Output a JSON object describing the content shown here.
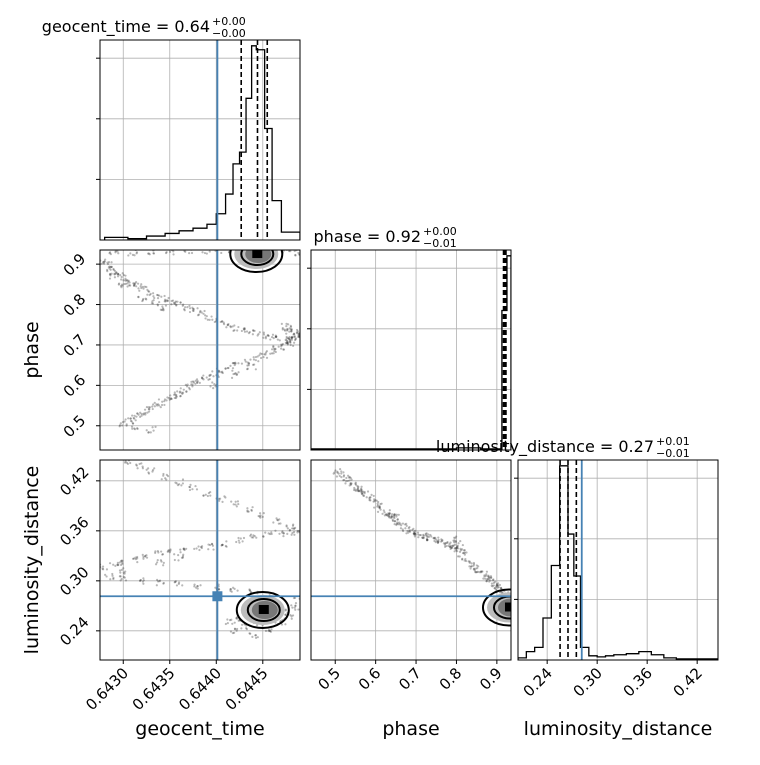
{
  "chart_data": {
    "type": "corner",
    "parameters": [
      {
        "key": "geocent_time",
        "label": "geocent_time",
        "range": [
          0.64275,
          0.6449
        ],
        "ticks": [
          0.643,
          0.6435,
          0.644,
          0.6445
        ],
        "tick_labels": [
          "0.6430",
          "0.6435",
          "0.6440",
          "0.6445"
        ],
        "title_value": "0.64",
        "title_plus": "+0.00",
        "title_minus": "−0.00",
        "title": "geocent_time = 0.64",
        "quantiles": [
          0.644268,
          0.644443,
          0.644548
        ],
        "truth": 0.644012
      },
      {
        "key": "phase",
        "label": "phase",
        "range": [
          0.44,
          0.935
        ],
        "ticks": [
          0.5,
          0.6,
          0.7,
          0.8,
          0.9
        ],
        "tick_labels": [
          "0.5",
          "0.6",
          "0.7",
          "0.8",
          "0.9"
        ],
        "title_value": "0.92",
        "title_plus": "+0.00",
        "title_minus": "−0.01",
        "title": "phase = 0.92",
        "quantiles": [
          0.9165,
          0.9195,
          0.9225
        ],
        "truth": null
      },
      {
        "key": "luminosity_distance",
        "label": "luminosity_distance",
        "range": [
          0.205,
          0.445
        ],
        "ticks": [
          0.24,
          0.3,
          0.36,
          0.42
        ],
        "tick_labels": [
          "0.24",
          "0.30",
          "0.36",
          "0.42"
        ],
        "title_value": "0.27",
        "title_plus": "+0.01",
        "title_minus": "−0.01",
        "title": "luminosity_distance = 0.27",
        "quantiles": [
          0.2555,
          0.265,
          0.275
        ],
        "truth": 0.2815
      }
    ],
    "histograms": {
      "geocent_time": {
        "edges": [
          0.6428,
          0.64305,
          0.64325,
          0.64345,
          0.6436,
          0.64375,
          0.6439,
          0.644,
          0.6441,
          0.64418,
          0.64425,
          0.64432,
          0.64438,
          0.64443,
          0.64452,
          0.6446,
          0.6447,
          0.6449
        ],
        "counts": [
          2,
          1,
          3,
          5,
          7,
          9,
          12,
          20,
          35,
          58,
          67,
          108,
          148,
          145,
          85,
          30,
          6
        ]
      },
      "phase": {
        "edges": [
          0.44,
          0.5,
          0.56,
          0.62,
          0.68,
          0.74,
          0.8,
          0.86,
          0.9,
          0.9125,
          0.925,
          0.935
        ],
        "counts": [
          1,
          1,
          1,
          1,
          1,
          1,
          2,
          1,
          1,
          130,
          181
        ]
      },
      "luminosity_distance": {
        "edges": [
          0.205,
          0.215,
          0.225,
          0.235,
          0.245,
          0.255,
          0.265,
          0.272,
          0.28,
          0.29,
          0.3,
          0.31,
          0.32,
          0.335,
          0.35,
          0.365,
          0.38,
          0.395,
          0.445
        ],
        "counts": [
          2,
          8,
          12,
          40,
          90,
          185,
          120,
          80,
          12,
          4,
          3,
          4,
          5,
          6,
          8,
          5,
          2,
          1
        ]
      }
    },
    "scatter": {
      "geocent_time_vs_phase": [
        [
          0.64279,
          0.905
        ],
        [
          0.64283,
          0.9
        ],
        [
          0.64286,
          0.89
        ],
        [
          0.6429,
          0.882
        ],
        [
          0.64295,
          0.875
        ],
        [
          0.643,
          0.866
        ],
        [
          0.64305,
          0.858
        ],
        [
          0.6431,
          0.852
        ],
        [
          0.64316,
          0.845
        ],
        [
          0.64322,
          0.838
        ],
        [
          0.6433,
          0.83
        ],
        [
          0.64337,
          0.822
        ],
        [
          0.64345,
          0.815
        ],
        [
          0.64352,
          0.808
        ],
        [
          0.6436,
          0.8
        ],
        [
          0.64368,
          0.792
        ],
        [
          0.64376,
          0.785
        ],
        [
          0.64384,
          0.777
        ],
        [
          0.64392,
          0.769
        ],
        [
          0.64402,
          0.76
        ],
        [
          0.64412,
          0.75
        ],
        [
          0.6442,
          0.742
        ],
        [
          0.6443,
          0.735
        ],
        [
          0.6444,
          0.729
        ],
        [
          0.6445,
          0.724
        ],
        [
          0.6446,
          0.72
        ],
        [
          0.64468,
          0.718
        ],
        [
          0.64476,
          0.716
        ],
        [
          0.64482,
          0.715
        ],
        [
          0.64486,
          0.717
        ],
        [
          0.64485,
          0.724
        ],
        [
          0.6448,
          0.735
        ],
        [
          0.64474,
          0.745
        ],
        [
          0.64466,
          0.69
        ],
        [
          0.64458,
          0.682
        ],
        [
          0.6445,
          0.674
        ],
        [
          0.64442,
          0.667
        ],
        [
          0.64432,
          0.658
        ],
        [
          0.64422,
          0.65
        ],
        [
          0.64414,
          0.643
        ],
        [
          0.64405,
          0.636
        ],
        [
          0.64398,
          0.628
        ],
        [
          0.6439,
          0.62
        ],
        [
          0.64383,
          0.612
        ],
        [
          0.64377,
          0.604
        ],
        [
          0.6437,
          0.596
        ],
        [
          0.64365,
          0.588
        ],
        [
          0.6436,
          0.58
        ],
        [
          0.64354,
          0.572
        ],
        [
          0.64348,
          0.565
        ],
        [
          0.64342,
          0.558
        ],
        [
          0.64336,
          0.55
        ],
        [
          0.6433,
          0.542
        ],
        [
          0.64324,
          0.535
        ],
        [
          0.64318,
          0.528
        ],
        [
          0.64312,
          0.52
        ],
        [
          0.64306,
          0.512
        ],
        [
          0.643,
          0.505
        ],
        [
          0.64312,
          0.498
        ],
        [
          0.6433,
          0.49
        ],
        [
          0.6429,
          0.925
        ],
        [
          0.6431,
          0.928
        ],
        [
          0.6433,
          0.93
        ],
        [
          0.6435,
          0.931
        ],
        [
          0.6437,
          0.932
        ],
        [
          0.6439,
          0.932
        ],
        [
          0.6441,
          0.933
        ],
        [
          0.6443,
          0.932
        ],
        [
          0.64455,
          0.93
        ],
        [
          0.64475,
          0.929
        ],
        [
          0.64488,
          0.928
        ],
        [
          0.64475,
          0.705
        ],
        [
          0.6448,
          0.7
        ],
        [
          0.6447,
          0.695
        ],
        [
          0.64484,
          0.73
        ],
        [
          0.64478,
          0.74
        ],
        [
          0.6432,
          0.815
        ],
        [
          0.64335,
          0.805
        ],
        [
          0.64345,
          0.792
        ],
        [
          0.643,
          0.845
        ],
        [
          0.6429,
          0.87
        ],
        [
          0.64395,
          0.94
        ],
        [
          0.64438,
          0.645
        ],
        [
          0.6442,
          0.625
        ],
        [
          0.64398,
          0.6
        ]
      ],
      "geocent_time_vs_luminosity_distance": [
        [
          0.64279,
          0.316
        ],
        [
          0.6429,
          0.318
        ],
        [
          0.643,
          0.322
        ],
        [
          0.64312,
          0.326
        ],
        [
          0.64325,
          0.33
        ],
        [
          0.64338,
          0.333
        ],
        [
          0.6435,
          0.335
        ],
        [
          0.64365,
          0.337
        ],
        [
          0.6438,
          0.339
        ],
        [
          0.64395,
          0.341
        ],
        [
          0.6441,
          0.344
        ],
        [
          0.64425,
          0.348
        ],
        [
          0.6444,
          0.352
        ],
        [
          0.64455,
          0.355
        ],
        [
          0.64468,
          0.357
        ],
        [
          0.6448,
          0.358
        ],
        [
          0.64487,
          0.36
        ],
        [
          0.6448,
          0.365
        ],
        [
          0.64465,
          0.372
        ],
        [
          0.6445,
          0.378
        ],
        [
          0.64435,
          0.385
        ],
        [
          0.6442,
          0.392
        ],
        [
          0.64405,
          0.398
        ],
        [
          0.6439,
          0.405
        ],
        [
          0.64375,
          0.412
        ],
        [
          0.6436,
          0.418
        ],
        [
          0.64345,
          0.425
        ],
        [
          0.6433,
          0.432
        ],
        [
          0.64318,
          0.438
        ],
        [
          0.64305,
          0.443
        ],
        [
          0.64285,
          0.305
        ],
        [
          0.643,
          0.302
        ],
        [
          0.6432,
          0.3
        ],
        [
          0.6434,
          0.298
        ],
        [
          0.6436,
          0.296
        ],
        [
          0.6438,
          0.294
        ],
        [
          0.644,
          0.292
        ],
        [
          0.6442,
          0.29
        ],
        [
          0.6444,
          0.286
        ],
        [
          0.64455,
          0.28
        ],
        [
          0.64465,
          0.272
        ],
        [
          0.6447,
          0.262
        ],
        [
          0.6446,
          0.252
        ],
        [
          0.64445,
          0.248
        ],
        [
          0.6443,
          0.245
        ],
        [
          0.6442,
          0.24
        ],
        [
          0.6444,
          0.235
        ],
        [
          0.64455,
          0.24
        ],
        [
          0.6447,
          0.25
        ],
        [
          0.64478,
          0.258
        ],
        [
          0.64485,
          0.268
        ],
        [
          0.64488,
          0.276
        ],
        [
          0.6436,
          0.328
        ],
        [
          0.6434,
          0.322
        ],
        [
          0.643,
          0.312
        ],
        [
          0.64415,
          0.25
        ],
        [
          0.64425,
          0.255
        ]
      ],
      "phase_vs_luminosity_distance": [
        [
          0.505,
          0.432
        ],
        [
          0.515,
          0.428
        ],
        [
          0.525,
          0.424
        ],
        [
          0.535,
          0.42
        ],
        [
          0.545,
          0.416
        ],
        [
          0.555,
          0.412
        ],
        [
          0.565,
          0.408
        ],
        [
          0.575,
          0.405
        ],
        [
          0.585,
          0.4
        ],
        [
          0.595,
          0.396
        ],
        [
          0.605,
          0.391
        ],
        [
          0.615,
          0.386
        ],
        [
          0.625,
          0.382
        ],
        [
          0.635,
          0.378
        ],
        [
          0.645,
          0.374
        ],
        [
          0.655,
          0.37
        ],
        [
          0.665,
          0.366
        ],
        [
          0.675,
          0.363
        ],
        [
          0.685,
          0.36
        ],
        [
          0.695,
          0.358
        ],
        [
          0.705,
          0.356
        ],
        [
          0.715,
          0.355
        ],
        [
          0.725,
          0.354
        ],
        [
          0.735,
          0.352
        ],
        [
          0.745,
          0.35
        ],
        [
          0.755,
          0.348
        ],
        [
          0.765,
          0.346
        ],
        [
          0.775,
          0.344
        ],
        [
          0.785,
          0.342
        ],
        [
          0.795,
          0.34
        ],
        [
          0.805,
          0.336
        ],
        [
          0.815,
          0.332
        ],
        [
          0.825,
          0.326
        ],
        [
          0.835,
          0.32
        ],
        [
          0.845,
          0.316
        ],
        [
          0.855,
          0.312
        ],
        [
          0.865,
          0.308
        ],
        [
          0.875,
          0.304
        ],
        [
          0.885,
          0.3
        ],
        [
          0.895,
          0.296
        ],
        [
          0.905,
          0.292
        ],
        [
          0.915,
          0.288
        ],
        [
          0.925,
          0.284
        ],
        [
          0.93,
          0.278
        ],
        [
          0.8,
          0.345
        ],
        [
          0.79,
          0.35
        ],
        [
          0.81,
          0.34
        ],
        [
          0.64,
          0.38
        ],
        [
          0.65,
          0.376
        ],
        [
          0.56,
          0.41
        ],
        [
          0.88,
          0.302
        ],
        [
          0.9,
          0.294
        ]
      ]
    },
    "truth_values": {
      "geocent_time": 0.644012,
      "luminosity_distance": 0.2815
    },
    "density_peaks": {
      "geocent_time_vs_phase": [
        0.64443,
        0.925
      ],
      "geocent_time_vs_luminosity_distance": [
        0.6445,
        0.265
      ],
      "phase_vs_luminosity_distance": [
        0.93,
        0.268
      ]
    },
    "axis_labels": {
      "x": [
        "geocent_time",
        "phase",
        "luminosity_distance"
      ],
      "y": [
        "phase",
        "luminosity_distance"
      ]
    },
    "grid": true
  }
}
